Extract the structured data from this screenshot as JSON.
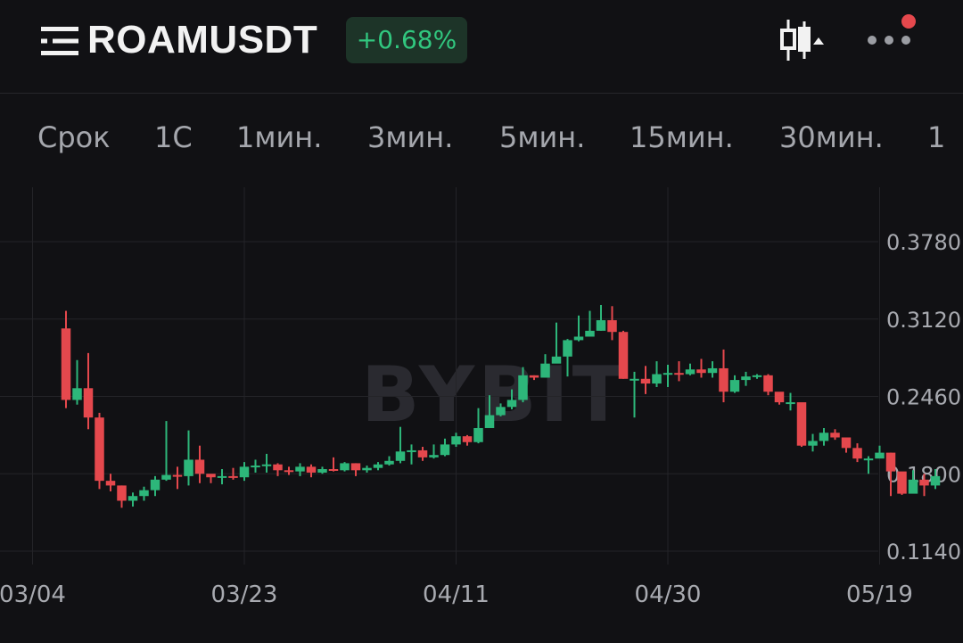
{
  "header": {
    "symbol": "ROAMUSDT",
    "change": "+0.68%",
    "icons": [
      "menu-icon",
      "indicator-icon",
      "more-icon"
    ],
    "notification_dot_color": "#e5484d"
  },
  "tabs": [
    {
      "label": "Срок"
    },
    {
      "label": "1С"
    },
    {
      "label": "1мин."
    },
    {
      "label": "3мин."
    },
    {
      "label": "5мин."
    },
    {
      "label": "15мин."
    },
    {
      "label": "30мин."
    },
    {
      "label": "1"
    }
  ],
  "colors": {
    "background": "#111114",
    "grid": "#242428",
    "up": "#2db67a",
    "down": "#e5484d",
    "badge_bg": "#1d3428",
    "badge_text": "#31c77f"
  },
  "chart_data": {
    "type": "candlestick",
    "watermark": "BYBIT",
    "y_ticks": [
      "0.3780",
      "0.3120",
      "0.2460",
      "0.1800",
      "0.1140"
    ],
    "y_tick_values": [
      0.378,
      0.312,
      0.246,
      0.18,
      0.114
    ],
    "x_ticks": [
      "03/04",
      "03/23",
      "04/11",
      "04/30",
      "05/19"
    ],
    "x_tick_candle_index": [
      -3,
      16,
      35,
      54,
      73
    ],
    "ylim": [
      0.114,
      0.378
    ],
    "grid": true,
    "candles": [
      [
        0.304,
        0.243,
        0.319,
        0.236
      ],
      [
        0.243,
        0.253,
        0.277,
        0.239
      ],
      [
        0.253,
        0.228,
        0.283,
        0.218
      ],
      [
        0.228,
        0.174,
        0.232,
        0.167
      ],
      [
        0.174,
        0.17,
        0.18,
        0.165
      ],
      [
        0.17,
        0.157,
        0.17,
        0.151
      ],
      [
        0.157,
        0.161,
        0.164,
        0.152
      ],
      [
        0.161,
        0.166,
        0.169,
        0.157
      ],
      [
        0.166,
        0.175,
        0.178,
        0.161
      ],
      [
        0.175,
        0.179,
        0.225,
        0.174
      ],
      [
        0.179,
        0.178,
        0.186,
        0.167
      ],
      [
        0.178,
        0.192,
        0.217,
        0.17
      ],
      [
        0.192,
        0.18,
        0.204,
        0.172
      ],
      [
        0.18,
        0.177,
        0.178,
        0.172
      ],
      [
        0.177,
        0.178,
        0.184,
        0.171
      ],
      [
        0.178,
        0.177,
        0.185,
        0.175
      ],
      [
        0.177,
        0.186,
        0.19,
        0.174
      ],
      [
        0.186,
        0.187,
        0.192,
        0.181
      ],
      [
        0.187,
        0.188,
        0.197,
        0.181
      ],
      [
        0.188,
        0.183,
        0.189,
        0.178
      ],
      [
        0.183,
        0.182,
        0.186,
        0.179
      ],
      [
        0.182,
        0.186,
        0.189,
        0.178
      ],
      [
        0.186,
        0.181,
        0.188,
        0.177
      ],
      [
        0.181,
        0.184,
        0.186,
        0.18
      ],
      [
        0.184,
        0.183,
        0.194,
        0.182
      ],
      [
        0.183,
        0.189,
        0.19,
        0.182
      ],
      [
        0.189,
        0.183,
        0.189,
        0.178
      ],
      [
        0.183,
        0.185,
        0.187,
        0.181
      ],
      [
        0.185,
        0.188,
        0.19,
        0.183
      ],
      [
        0.188,
        0.191,
        0.195,
        0.187
      ],
      [
        0.191,
        0.199,
        0.22,
        0.189
      ],
      [
        0.199,
        0.2,
        0.205,
        0.188
      ],
      [
        0.2,
        0.194,
        0.203,
        0.191
      ],
      [
        0.194,
        0.196,
        0.205,
        0.193
      ],
      [
        0.196,
        0.205,
        0.21,
        0.195
      ],
      [
        0.205,
        0.212,
        0.215,
        0.203
      ],
      [
        0.212,
        0.207,
        0.213,
        0.204
      ],
      [
        0.207,
        0.219,
        0.236,
        0.206
      ],
      [
        0.219,
        0.23,
        0.247,
        0.226
      ],
      [
        0.23,
        0.237,
        0.24,
        0.229
      ],
      [
        0.237,
        0.243,
        0.252,
        0.235
      ],
      [
        0.243,
        0.264,
        0.271,
        0.241
      ],
      [
        0.264,
        0.262,
        0.264,
        0.26
      ],
      [
        0.262,
        0.274,
        0.282,
        0.262
      ],
      [
        0.274,
        0.28,
        0.309,
        0.276
      ],
      [
        0.28,
        0.294,
        0.295,
        0.263
      ],
      [
        0.294,
        0.297,
        0.315,
        0.293
      ],
      [
        0.297,
        0.302,
        0.319,
        0.298
      ],
      [
        0.302,
        0.311,
        0.324,
        0.302
      ],
      [
        0.311,
        0.301,
        0.323,
        0.294
      ],
      [
        0.301,
        0.261,
        0.302,
        0.261
      ],
      [
        0.261,
        0.261,
        0.267,
        0.228
      ],
      [
        0.261,
        0.257,
        0.272,
        0.248
      ],
      [
        0.257,
        0.265,
        0.276,
        0.254
      ],
      [
        0.265,
        0.266,
        0.273,
        0.254
      ],
      [
        0.266,
        0.265,
        0.276,
        0.259
      ],
      [
        0.265,
        0.269,
        0.274,
        0.264
      ],
      [
        0.269,
        0.266,
        0.278,
        0.262
      ],
      [
        0.266,
        0.27,
        0.276,
        0.262
      ],
      [
        0.27,
        0.25,
        0.286,
        0.241
      ],
      [
        0.25,
        0.26,
        0.264,
        0.249
      ],
      [
        0.26,
        0.263,
        0.267,
        0.255
      ],
      [
        0.263,
        0.264,
        0.265,
        0.261
      ],
      [
        0.264,
        0.25,
        0.265,
        0.247
      ],
      [
        0.25,
        0.241,
        0.249,
        0.239
      ],
      [
        0.241,
        0.241,
        0.249,
        0.234
      ],
      [
        0.241,
        0.204,
        0.236,
        0.203
      ],
      [
        0.204,
        0.208,
        0.214,
        0.199
      ],
      [
        0.208,
        0.215,
        0.219,
        0.204
      ],
      [
        0.215,
        0.211,
        0.218,
        0.209
      ],
      [
        0.211,
        0.202,
        0.209,
        0.198
      ],
      [
        0.202,
        0.193,
        0.206,
        0.19
      ],
      [
        0.193,
        0.193,
        0.195,
        0.18
      ],
      [
        0.193,
        0.198,
        0.204,
        0.196
      ],
      [
        0.198,
        0.182,
        0.198,
        0.161
      ],
      [
        0.182,
        0.163,
        0.169,
        0.162
      ],
      [
        0.163,
        0.175,
        0.183,
        0.164
      ],
      [
        0.175,
        0.17,
        0.18,
        0.161
      ],
      [
        0.17,
        0.178,
        0.184,
        0.167
      ]
    ]
  }
}
